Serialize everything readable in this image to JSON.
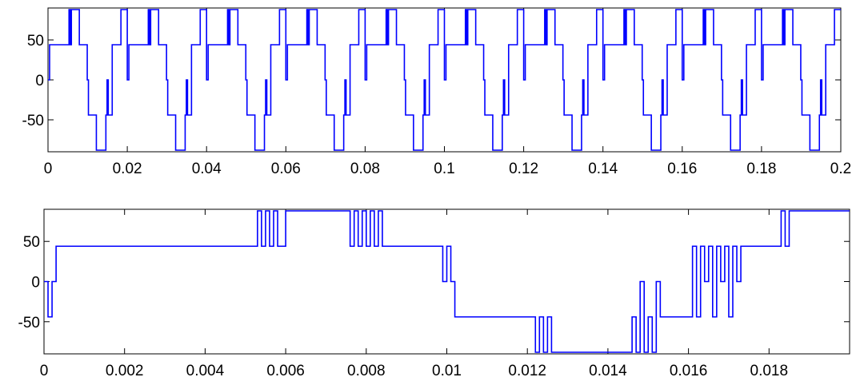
{
  "chart_data": [
    {
      "type": "line",
      "drawstyle": "steps-post",
      "xlim": [
        0,
        0.2
      ],
      "ylim": [
        -90,
        90
      ],
      "xticks": [
        0,
        0.02,
        0.04,
        0.06,
        0.08,
        0.1,
        0.12,
        0.14,
        0.16,
        0.18,
        0.2
      ],
      "yticks": [
        -50,
        0,
        50
      ],
      "x": [
        0,
        0.0004,
        0.0053,
        0.0056,
        0.0059,
        0.0079,
        0.0099,
        0.0102,
        0.0122,
        0.0146,
        0.0149,
        0.0152,
        0.0162,
        0.0184,
        0.02,
        0.0204,
        0.0253,
        0.0256,
        0.0259,
        0.0279,
        0.0299,
        0.0302,
        0.0322,
        0.0346,
        0.0349,
        0.0352,
        0.0362,
        0.0384,
        0.04,
        0.0404,
        0.0453,
        0.0456,
        0.0459,
        0.0479,
        0.0499,
        0.0502,
        0.0522,
        0.0546,
        0.0549,
        0.0552,
        0.0562,
        0.0584,
        0.06,
        0.0604,
        0.0653,
        0.0656,
        0.0659,
        0.0679,
        0.0699,
        0.0702,
        0.0722,
        0.0746,
        0.0749,
        0.0752,
        0.0762,
        0.0784,
        0.08,
        0.0804,
        0.0853,
        0.0856,
        0.0859,
        0.0879,
        0.0899,
        0.0902,
        0.0922,
        0.0946,
        0.0949,
        0.0952,
        0.0962,
        0.0984,
        0.1,
        0.1004,
        0.1053,
        0.1056,
        0.1059,
        0.1079,
        0.1099,
        0.1102,
        0.1122,
        0.1146,
        0.1149,
        0.1152,
        0.1162,
        0.1184,
        0.12,
        0.1204,
        0.1253,
        0.1256,
        0.1259,
        0.1279,
        0.1299,
        0.1302,
        0.1322,
        0.1346,
        0.1349,
        0.1352,
        0.1362,
        0.1384,
        0.14,
        0.1404,
        0.1453,
        0.1456,
        0.1459,
        0.1479,
        0.1499,
        0.1502,
        0.1522,
        0.1546,
        0.1549,
        0.1552,
        0.1562,
        0.1584,
        0.16,
        0.1604,
        0.1653,
        0.1656,
        0.1659,
        0.1679,
        0.1699,
        0.1702,
        0.1722,
        0.1746,
        0.1749,
        0.1752,
        0.1762,
        0.1784,
        0.18,
        0.1804,
        0.1853,
        0.1856,
        0.1859,
        0.1879,
        0.1899,
        0.1902,
        0.1922,
        0.1946,
        0.1949,
        0.1952,
        0.1962,
        0.1984
      ],
      "series": [
        {
          "color": "#0000ff",
          "values": [
            0,
            44,
            88,
            44,
            88,
            44,
            0,
            -44,
            -88,
            -44,
            0,
            -44,
            44,
            88,
            0,
            44,
            88,
            44,
            88,
            44,
            0,
            -44,
            -88,
            -44,
            0,
            -44,
            44,
            88,
            0,
            44,
            88,
            44,
            88,
            44,
            0,
            -44,
            -88,
            -44,
            0,
            -44,
            44,
            88,
            0,
            44,
            88,
            44,
            88,
            44,
            0,
            -44,
            -88,
            -44,
            0,
            -44,
            44,
            88,
            0,
            44,
            88,
            44,
            88,
            44,
            0,
            -44,
            -88,
            -44,
            0,
            -44,
            44,
            88,
            0,
            44,
            88,
            44,
            88,
            44,
            0,
            -44,
            -88,
            -44,
            0,
            -44,
            44,
            88,
            0,
            44,
            88,
            44,
            88,
            44,
            0,
            -44,
            -88,
            -44,
            0,
            -44,
            44,
            88,
            0,
            44,
            88,
            44,
            88,
            44,
            0,
            -44,
            -88,
            -44,
            0,
            -44,
            44,
            88,
            0,
            44,
            88,
            44,
            88,
            44,
            0,
            -44,
            -88,
            -44,
            0,
            -44,
            44,
            88,
            0,
            44,
            88,
            44,
            88,
            44,
            0,
            -44,
            -88,
            -44,
            0,
            -44,
            44,
            88
          ]
        }
      ]
    },
    {
      "type": "line",
      "drawstyle": "steps-post",
      "xlim": [
        0,
        0.02
      ],
      "ylim": [
        -90,
        90
      ],
      "xticks": [
        0,
        0.002,
        0.004,
        0.006,
        0.008,
        0.01,
        0.012,
        0.014,
        0.016,
        0.018
      ],
      "yticks": [
        -50,
        0,
        50
      ],
      "x": [
        0,
        0.0001,
        0.0002,
        0.0003,
        0.0053,
        0.0054,
        0.0055,
        0.0056,
        0.0057,
        0.0058,
        0.0059,
        0.006,
        0.0076,
        0.0077,
        0.0078,
        0.0079,
        0.008,
        0.0081,
        0.0082,
        0.0083,
        0.0084,
        0.0099,
        0.01,
        0.0101,
        0.0102,
        0.0122,
        0.0123,
        0.0124,
        0.0125,
        0.0126,
        0.0146,
        0.0147,
        0.0148,
        0.0149,
        0.015,
        0.0151,
        0.0152,
        0.0153,
        0.0161,
        0.0162,
        0.0163,
        0.0164,
        0.0165,
        0.0166,
        0.0167,
        0.0168,
        0.0169,
        0.017,
        0.0171,
        0.0172,
        0.0173,
        0.0183,
        0.0184,
        0.0185
      ],
      "series": [
        {
          "color": "#0000ff",
          "values": [
            0,
            -44,
            0,
            44,
            88,
            44,
            88,
            44,
            88,
            44,
            44,
            88,
            44,
            88,
            44,
            88,
            44,
            88,
            44,
            88,
            44,
            0,
            44,
            0,
            -44,
            -88,
            -44,
            -88,
            -44,
            -88,
            -44,
            -88,
            0,
            -88,
            -44,
            -88,
            0,
            -44,
            44,
            -44,
            44,
            0,
            44,
            -44,
            44,
            0,
            44,
            -44,
            44,
            0,
            44,
            88,
            44,
            88
          ]
        }
      ]
    }
  ]
}
